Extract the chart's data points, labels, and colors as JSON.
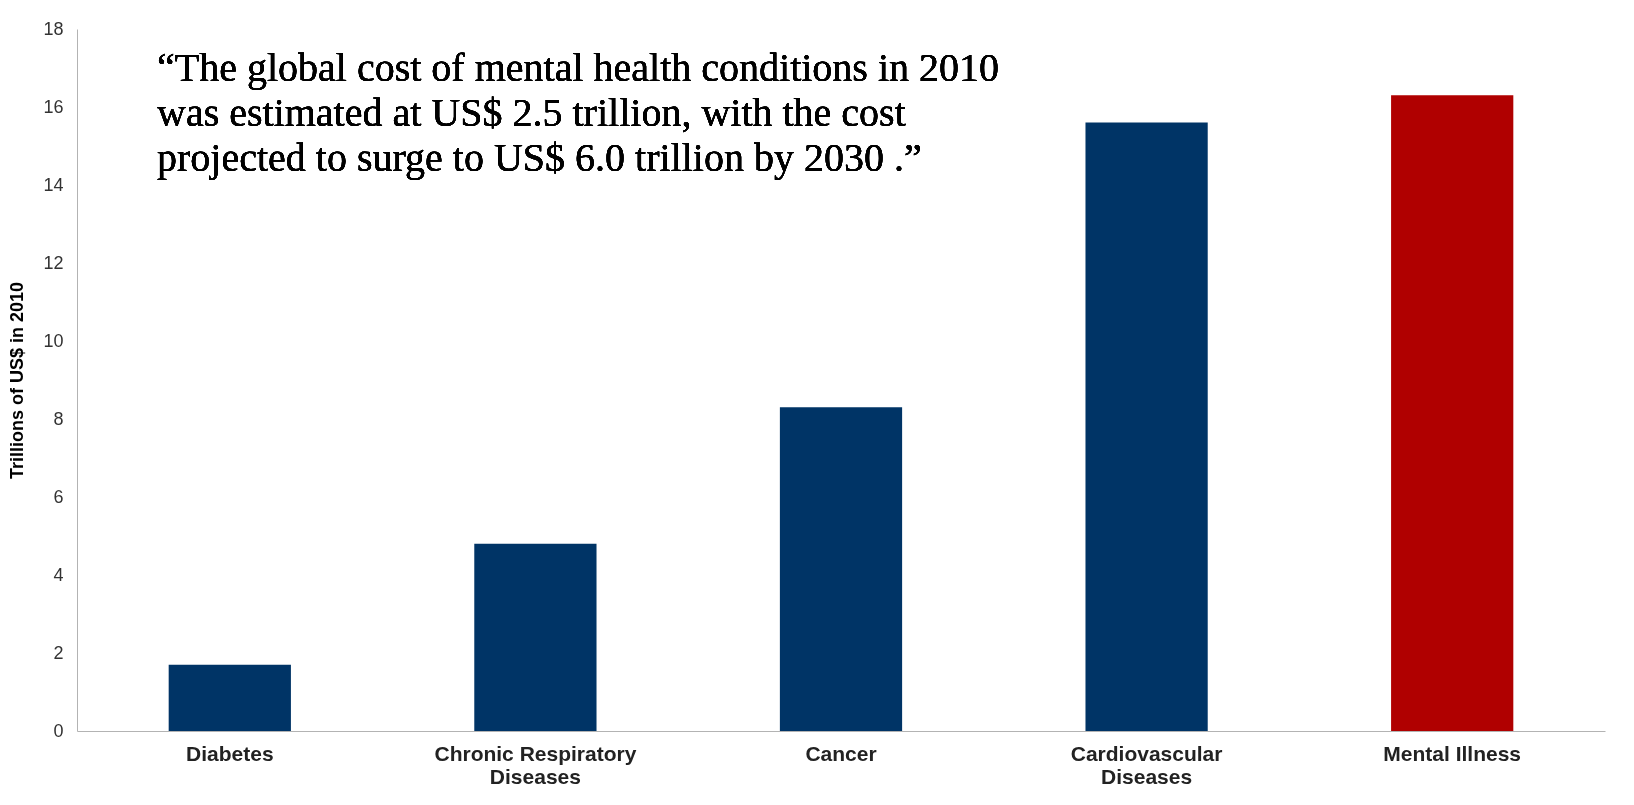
{
  "chart_data": {
    "type": "bar",
    "ylabel": "Trillions of US$ in 2010",
    "categories": [
      "Diabetes",
      "Chronic Respiratory Diseases",
      "Cancer",
      "Cardiovascular Diseases",
      "Mental Illness"
    ],
    "values": [
      1.7,
      4.8,
      8.3,
      15.6,
      16.3
    ],
    "colors": [
      "#003466",
      "#003466",
      "#003466",
      "#003466",
      "#b00000"
    ],
    "ylim": [
      0,
      18
    ],
    "yticks": [
      0,
      2,
      4,
      6,
      8,
      10,
      12,
      14,
      16,
      18
    ],
    "grid": false,
    "annotations": [
      "“The global cost of mental health conditions in 2010\nwas estimated at US$ 2.5 trillion, with the cost\nprojected to surge to US$ 6.0 trillion by 2030 .”"
    ]
  }
}
